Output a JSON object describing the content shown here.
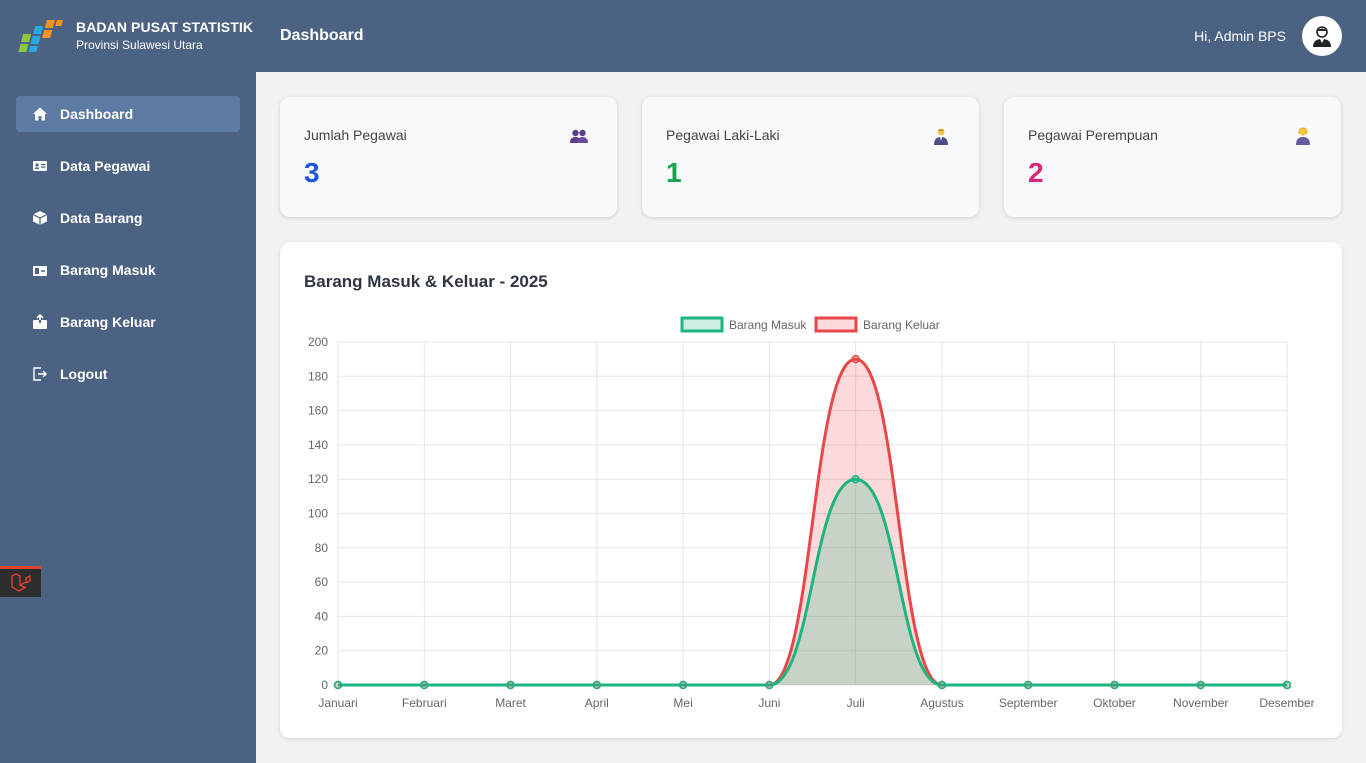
{
  "brand": {
    "title": "BADAN PUSAT STATISTIK",
    "subtitle": "Provinsi Sulawesi Utara"
  },
  "sidebar": {
    "items": [
      {
        "label": "Dashboard",
        "icon": "home-icon",
        "active": true
      },
      {
        "label": "Data Pegawai",
        "icon": "id-card-icon",
        "active": false
      },
      {
        "label": "Data Barang",
        "icon": "box-icon",
        "active": false
      },
      {
        "label": "Barang Masuk",
        "icon": "inbox-in-icon",
        "active": false
      },
      {
        "label": "Barang Keluar",
        "icon": "box-out-icon",
        "active": false
      },
      {
        "label": "Logout",
        "icon": "logout-icon",
        "active": false
      }
    ]
  },
  "header": {
    "title": "Dashboard",
    "greeting": "Hi, Admin BPS"
  },
  "stats": [
    {
      "label": "Jumlah Pegawai",
      "value": "3",
      "color": "#1a56db",
      "icon": "users-icon"
    },
    {
      "label": "Pegawai Laki-Laki",
      "value": "1",
      "color": "#16a34a",
      "icon": "man-icon"
    },
    {
      "label": "Pegawai Perempuan",
      "value": "2",
      "color": "#db2777",
      "icon": "woman-icon"
    }
  ],
  "chart": {
    "title": "Barang Masuk & Keluar - 2025"
  },
  "chart_data": {
    "type": "area",
    "title": "Barang Masuk & Keluar - 2025",
    "categories": [
      "Januari",
      "Februari",
      "Maret",
      "April",
      "Mei",
      "Juni",
      "Juli",
      "Agustus",
      "September",
      "Oktober",
      "November",
      "Desember"
    ],
    "series": [
      {
        "name": "Barang Masuk",
        "values": [
          0,
          0,
          0,
          0,
          0,
          0,
          120,
          0,
          0,
          0,
          0,
          0
        ],
        "color": "#1db57f"
      },
      {
        "name": "Barang Keluar",
        "values": [
          0,
          0,
          0,
          0,
          0,
          0,
          190,
          0,
          0,
          0,
          0,
          0
        ],
        "color": "#e84749"
      }
    ],
    "ylim": [
      0,
      200
    ],
    "yticks": [
      0,
      20,
      40,
      60,
      80,
      100,
      120,
      140,
      160,
      180,
      200
    ],
    "legend": "top-center",
    "grid": true
  }
}
